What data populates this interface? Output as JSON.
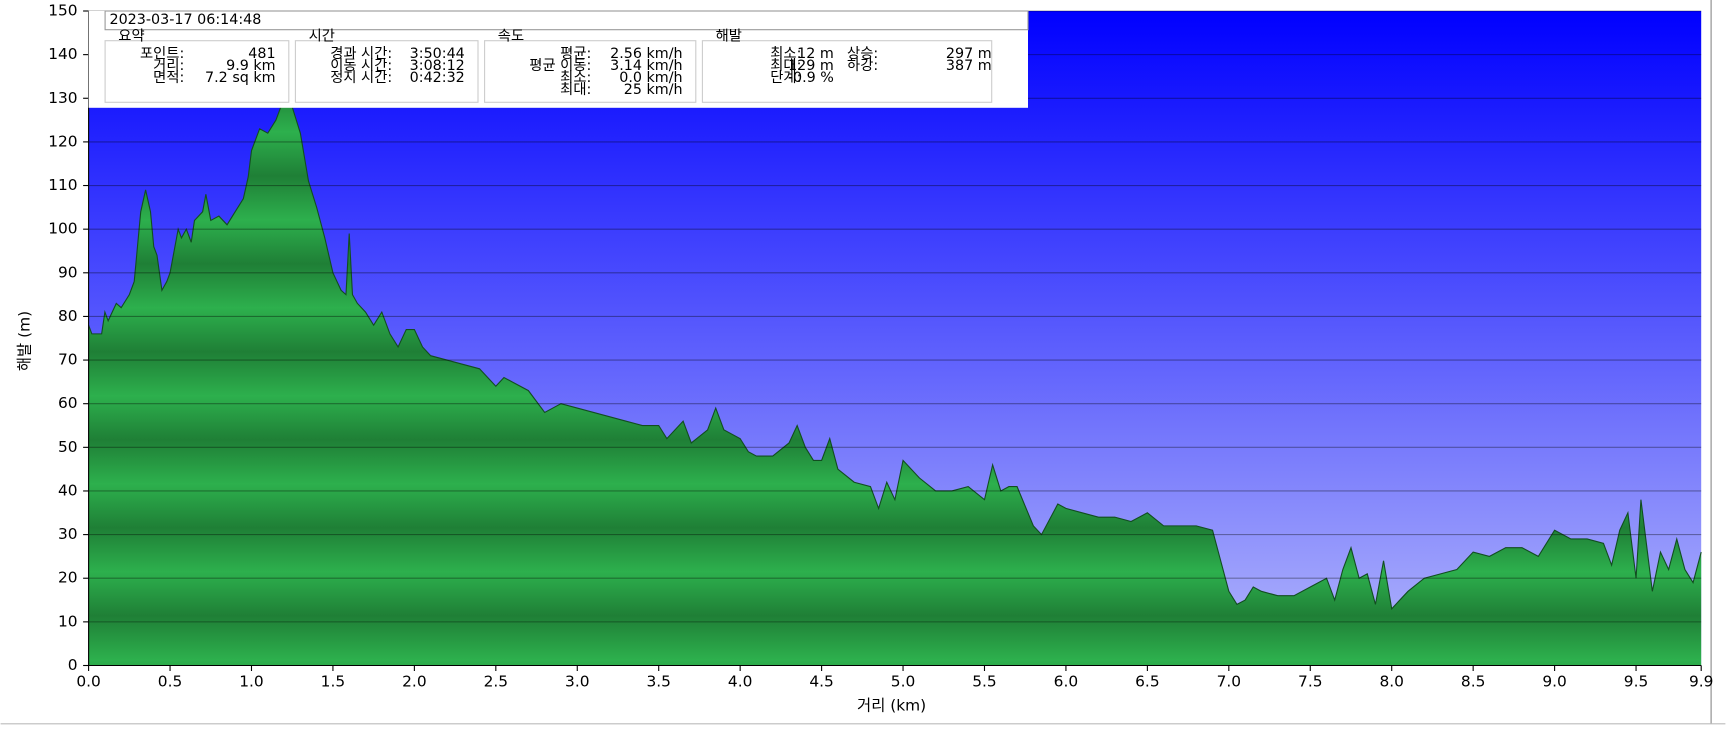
{
  "chart_data": {
    "type": "area",
    "x_label": "거리  (km)",
    "y_label": "해발 (m)",
    "info": {
      "timestamp": "2023-03-17 06:14:48",
      "groups": [
        {
          "title": "요약",
          "columns": [
            [
              {
                "label": "포인트:",
                "value": "481"
              },
              {
                "label": "거리:",
                "value": "9.9 km"
              },
              {
                "label": "면적:",
                "value": "7.2 sq km"
              }
            ]
          ]
        },
        {
          "title": "시간",
          "columns": [
            [
              {
                "label": "경과 시간:",
                "value": "3:50:44"
              },
              {
                "label": "이동 시간:",
                "value": "3:08:12"
              },
              {
                "label": "정지 시간:",
                "value": "0:42:32"
              }
            ]
          ]
        },
        {
          "title": "속도",
          "columns": [
            [
              {
                "label": "평균:",
                "value": "2.56 km/h"
              },
              {
                "label": "평균 이동:",
                "value": "3.14 km/h"
              },
              {
                "label": "최소:",
                "value": "0.0 km/h"
              },
              {
                "label": "최대:",
                "value": "25 km/h"
              }
            ]
          ]
        },
        {
          "title": "해발",
          "columns": [
            [
              {
                "label": "최소:",
                "value": "12 m"
              },
              {
                "label": "최대:",
                "value": "129 m"
              },
              {
                "label": "단계:",
                "value": "-0.9 %"
              }
            ],
            [
              {
                "label": "상승:",
                "value": "297 m"
              },
              {
                "label": "하강:",
                "value": "387 m"
              }
            ]
          ]
        }
      ]
    },
    "x": [
      0,
      0.02,
      0.08,
      0.1,
      0.12,
      0.17,
      0.2,
      0.25,
      0.28,
      0.32,
      0.35,
      0.38,
      0.4,
      0.42,
      0.45,
      0.48,
      0.5,
      0.55,
      0.57,
      0.6,
      0.63,
      0.65,
      0.7,
      0.72,
      0.75,
      0.8,
      0.85,
      0.9,
      0.95,
      0.98,
      1.0,
      1.05,
      1.1,
      1.15,
      1.2,
      1.25,
      1.3,
      1.35,
      1.4,
      1.45,
      1.5,
      1.55,
      1.58,
      1.6,
      1.62,
      1.65,
      1.7,
      1.75,
      1.8,
      1.85,
      1.9,
      1.95,
      2.0,
      2.05,
      2.1,
      2.2,
      2.3,
      2.4,
      2.5,
      2.55,
      2.7,
      2.8,
      2.9,
      3.0,
      3.1,
      3.2,
      3.3,
      3.4,
      3.5,
      3.55,
      3.65,
      3.7,
      3.8,
      3.85,
      3.9,
      4.0,
      4.05,
      4.1,
      4.2,
      4.3,
      4.35,
      4.4,
      4.45,
      4.5,
      4.55,
      4.6,
      4.7,
      4.8,
      4.85,
      4.9,
      4.95,
      5.0,
      5.1,
      5.2,
      5.3,
      5.4,
      5.5,
      5.55,
      5.6,
      5.65,
      5.7,
      5.8,
      5.85,
      5.95,
      6.0,
      6.1,
      6.2,
      6.3,
      6.4,
      6.5,
      6.6,
      6.7,
      6.8,
      6.9,
      6.95,
      7.0,
      7.05,
      7.1,
      7.15,
      7.2,
      7.3,
      7.4,
      7.5,
      7.6,
      7.65,
      7.7,
      7.75,
      7.8,
      7.85,
      7.9,
      7.95,
      8.0,
      8.1,
      8.2,
      8.3,
      8.4,
      8.5,
      8.6,
      8.7,
      8.8,
      8.9,
      9.0,
      9.1,
      9.2,
      9.3,
      9.35,
      9.4,
      9.45,
      9.5,
      9.53,
      9.6,
      9.65,
      9.7,
      9.75,
      9.8,
      9.85,
      9.9
    ],
    "values": [
      78,
      76,
      76,
      81,
      79,
      83,
      82,
      85,
      88,
      104,
      109,
      104,
      96,
      94,
      86,
      88,
      90,
      100,
      98,
      100,
      97,
      102,
      104,
      108,
      102,
      103,
      101,
      104,
      107,
      112,
      118,
      123,
      122,
      125,
      130,
      128,
      122,
      111,
      105,
      98,
      90,
      86,
      85,
      99,
      85,
      83,
      81,
      78,
      81,
      76,
      73,
      77,
      77,
      73,
      71,
      70,
      69,
      68,
      64,
      66,
      63,
      58,
      60,
      59,
      58,
      57,
      56,
      55,
      55,
      52,
      56,
      51,
      54,
      59,
      54,
      52,
      49,
      48,
      48,
      51,
      55,
      50,
      47,
      47,
      52,
      45,
      42,
      41,
      36,
      42,
      38,
      47,
      43,
      40,
      40,
      41,
      38,
      46,
      40,
      41,
      41,
      32,
      30,
      37,
      36,
      35,
      34,
      34,
      33,
      35,
      32,
      32,
      32,
      31,
      24,
      17,
      14,
      15,
      18,
      17,
      16,
      16,
      18,
      20,
      15,
      22,
      27,
      20,
      21,
      14,
      24,
      13,
      17,
      20,
      21,
      22,
      26,
      25,
      27,
      27,
      25,
      31,
      29,
      29,
      28,
      23,
      31,
      35,
      20,
      38,
      17,
      26,
      22,
      29,
      22,
      19,
      26
    ],
    "color": "#22a045",
    "xlim": [
      0,
      9.9
    ],
    "ylim": [
      0,
      150
    ],
    "xticks": [
      {
        "value": 0,
        "label": "0.0"
      },
      0.5,
      {
        "value": 1,
        "label": "1.0"
      },
      1.5,
      {
        "value": 2,
        "label": "2.0"
      },
      2.5,
      {
        "value": 3,
        "label": "3.0"
      },
      3.5,
      {
        "value": 4,
        "label": "4.0"
      },
      4.5,
      {
        "value": 5,
        "label": "5.0"
      },
      5.5,
      {
        "value": 6,
        "label": "6.0"
      },
      6.5,
      {
        "value": 7,
        "label": "7.0"
      },
      7.5,
      {
        "value": 8,
        "label": "8.0"
      },
      8.5,
      {
        "value": 9,
        "label": "9.0"
      },
      9.5,
      9.9
    ],
    "yticks": [
      0,
      10,
      20,
      30,
      40,
      50,
      60,
      70,
      80,
      90,
      100,
      110,
      120,
      130,
      140,
      150
    ],
    "grid": true
  }
}
